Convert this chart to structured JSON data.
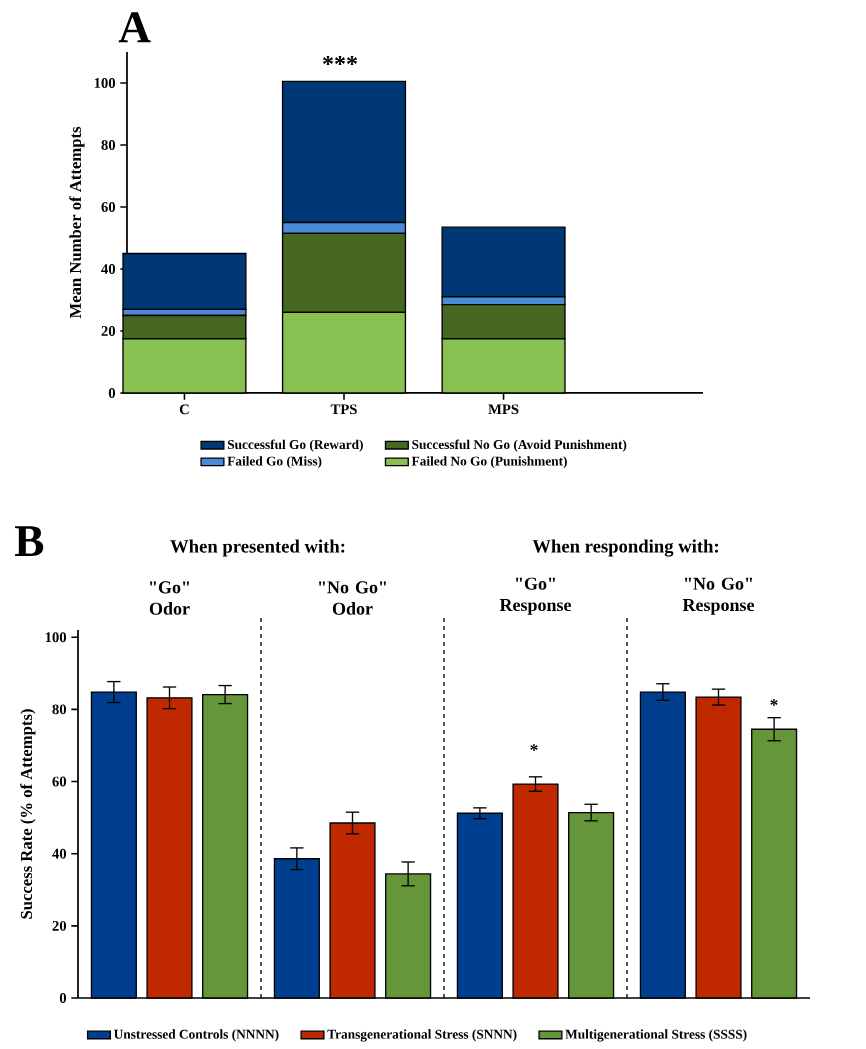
{
  "chart_data": [
    {
      "type": "bar",
      "stacked": true,
      "title": "A",
      "ylabel": "Mean Number of Attempts",
      "categories": [
        "C",
        "TPS",
        "MPS"
      ],
      "series": [
        {
          "name": "Failed No Go (Punishment)",
          "color": "#88c152",
          "values": [
            17.5,
            26,
            17.5
          ]
        },
        {
          "name": "Successful No Go (Avoid Punishment)",
          "color": "#476823",
          "values": [
            7.5,
            25.5,
            11
          ]
        },
        {
          "name": "Failed Go (Miss)",
          "color": "#4a8ad8",
          "values": [
            2,
            3.5,
            2.5
          ]
        },
        {
          "name": "Successful Go (Reward)",
          "color": "#003876",
          "values": [
            18,
            45.5,
            22.5
          ]
        }
      ],
      "ylim": [
        0,
        110
      ],
      "yticks": [
        0,
        20,
        40,
        60,
        80,
        100
      ],
      "legend": "bottom",
      "annotations": [
        "***"
      ]
    },
    {
      "type": "bar",
      "title": "B",
      "ylabel": "Success Rate (% of Attempts)",
      "categories": [
        "\"Go\" Odor",
        "\"No Go\" Odor",
        "\"Go\" Response",
        "\"No Go\" Response"
      ],
      "series": [
        {
          "name": "Unstressed Controls (NNNN)",
          "color": "#003f8f",
          "values": [
            84.8,
            38.6,
            51.2,
            84.8
          ],
          "errors": [
            2.9,
            3,
            1.5,
            2.3
          ]
        },
        {
          "name": "Transgenerational Stress (SNNN)",
          "color": "#c02800",
          "values": [
            83.2,
            48.5,
            59.3,
            83.4
          ],
          "errors": [
            3,
            3,
            2,
            2.2
          ]
        },
        {
          "name": "Multigenerational Stress (SSSS)",
          "color": "#66963a",
          "values": [
            84.1,
            34.4,
            51.4,
            74.5
          ],
          "errors": [
            2.5,
            3.3,
            2.3,
            3.2
          ]
        }
      ],
      "ylim": [
        0,
        102
      ],
      "yticks": [
        0,
        20,
        40,
        60,
        80,
        100
      ],
      "legend": "bottom",
      "annotations": [
        "When presented with:",
        "When responding with:",
        "*",
        "*"
      ]
    }
  ]
}
